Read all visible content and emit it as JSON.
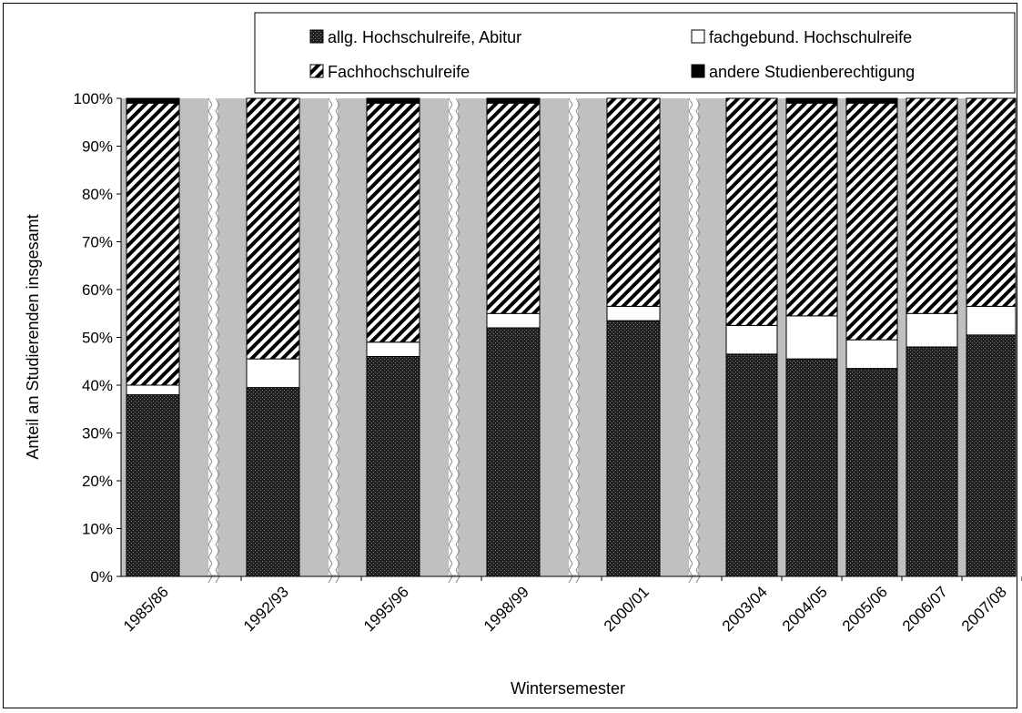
{
  "chart_data": {
    "type": "bar",
    "stacked": true,
    "percent_scale": true,
    "xlabel": "Wintersemester",
    "ylabel": "Anteil an Studierenden insgesamt",
    "ylim": [
      0,
      100
    ],
    "yticks": [
      "0%",
      "10%",
      "20%",
      "30%",
      "40%",
      "50%",
      "60%",
      "70%",
      "80%",
      "90%",
      "100%"
    ],
    "categories": [
      "1985/86",
      "1992/93",
      "1995/96",
      "1998/99",
      "2000/01",
      "2003/04",
      "2004/05",
      "2005/06",
      "2006/07",
      "2007/08"
    ],
    "axis_breaks_after": [
      "1985/86",
      "1992/93",
      "1995/96",
      "1998/99",
      "2000/01"
    ],
    "legend_placement": "top",
    "grid": false,
    "plot_background": "#c0c0c0",
    "series": [
      {
        "name": "allg. Hochschulreife, Abitur",
        "pattern": "dots-dark",
        "values": [
          38,
          39.5,
          46,
          52,
          53.5,
          46.5,
          45.5,
          43.5,
          48,
          50.5
        ]
      },
      {
        "name": "fachgebund. Hochschulreife",
        "pattern": "white",
        "values": [
          2,
          6,
          3,
          3,
          3,
          6,
          9,
          6,
          7,
          6
        ]
      },
      {
        "name": "Fachhochschulreife",
        "pattern": "diagonal-hatch",
        "values": [
          59,
          54.5,
          50,
          44,
          43.5,
          47.5,
          44.5,
          49.5,
          45,
          43.5
        ]
      },
      {
        "name": "andere Studienberechtigung",
        "pattern": "black",
        "values": [
          1,
          0,
          1,
          1,
          0,
          0,
          1,
          1,
          0,
          0
        ]
      }
    ]
  }
}
